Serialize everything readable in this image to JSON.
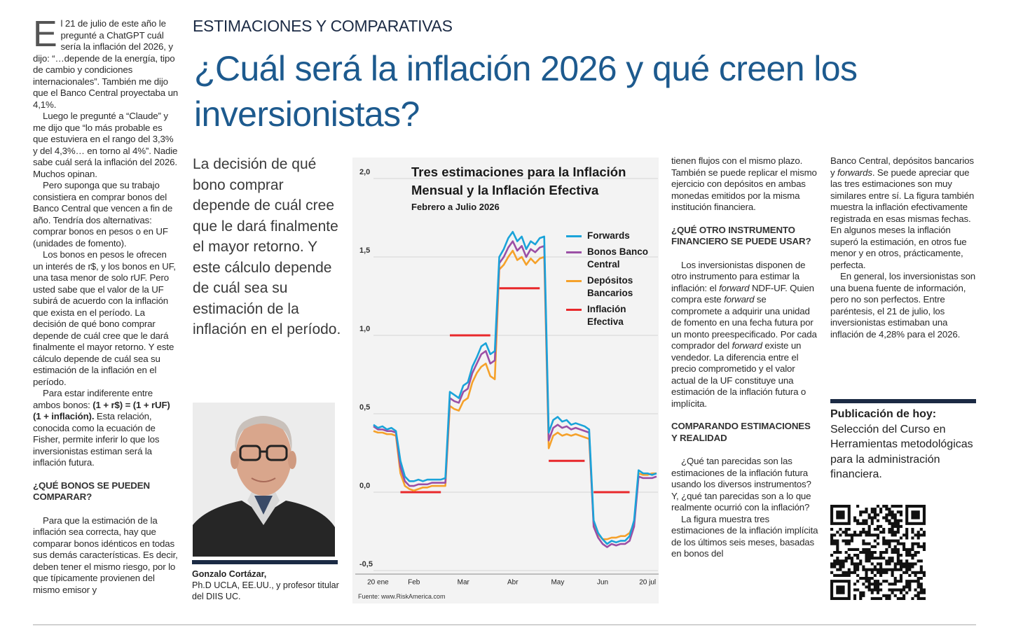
{
  "section": "ESTIMACIONES Y COMPARATIVAS",
  "headline": "¿Cuál será la inflación 2026 y qué creen los inversionistas?",
  "lead": "La decisión de qué bono comprar depende de cuál cree que le dará finalmente el mayor retorno. Y este cálculo depende de cuál sea su estimación de la inflación en el período.",
  "columns": [
    [
      {
        "type": "p",
        "drop_cap": "E",
        "text": "l 21 de julio de este año le pregunté a ChatGPT cuál sería la inflación del 2026, y dijo: “…depende de la energía, tipo de cambio y condiciones internacionales”. También me dijo que el Banco Central proyectaba un 4,1%."
      },
      {
        "type": "p",
        "text": "Luego le pregunté a “Claude” y me dijo que “lo más probable es que estuviera en el rango del 3,3% y del 4,3%… en torno al 4%”. Nadie sabe cuál será la inflación del 2026. Muchos opinan."
      },
      {
        "type": "p",
        "text": "Pero suponga que su trabajo consistiera en comprar bonos del Banco Central que vencen a fin de año. Tendría dos alternativas: comprar bonos en pesos o en UF (unidades de fomento)."
      },
      {
        "type": "p",
        "text": "Los bonos en pesos le ofrecen un interés de r$, y los bonos en UF, una tasa menor de solo rUF. Pero usted sabe que el valor de la UF subirá de acuerdo con la inflación que exista en el período. La decisión de qué bono comprar depende de cuál cree que le dará finalmente el mayor retorno. Y este cálculo depende de cuál sea su estimación de la inflación en el período."
      },
      {
        "type": "p",
        "runs": [
          {
            "text": "Para estar indiferente entre ambos bonos: "
          },
          {
            "text": "(1 + r$) = (1 + rUF) (1 + inflación).",
            "style": "bold"
          },
          {
            "text": " Esta relación, conocida como la ecuación de Fisher, permite inferir lo que los inversionistas estiman será la inflación futura."
          }
        ]
      },
      {
        "type": "h",
        "text": "¿QUÉ BONOS SE PUEDEN COMPARAR?"
      },
      {
        "type": "p",
        "text": "Para que la estimación de la inflación sea correcta, hay que comparar bonos idénticos en todas sus demás características. Es decir, deben tener el mismo riesgo, por lo que típicamente provienen del mismo emisor y"
      }
    ],
    [
      {
        "type": "p",
        "text": "tienen flujos con el mismo plazo. También se puede replicar el mismo ejercicio con depósitos en ambas monedas emitidos por la misma institución financiera."
      },
      {
        "type": "h",
        "text": "¿QUÉ OTRO INSTRUMENTO FINANCIERO SE PUEDE USAR?"
      },
      {
        "type": "p",
        "runs": [
          {
            "text": "Los inversionistas disponen de otro instrumento para estimar la inflación: el "
          },
          {
            "text": "forward",
            "style": "italic"
          },
          {
            "text": " NDF-UF. Quien compra este "
          },
          {
            "text": "forward",
            "style": "italic"
          },
          {
            "text": " se compromete a adquirir una unidad de fomento en una fecha futura por un monto preespecificado. Por cada comprador del "
          },
          {
            "text": "forward",
            "style": "italic"
          },
          {
            "text": " existe un vendedor. La diferencia entre el precio comprometido y el valor actual de la UF constituye una estimación de la inflación futura o implícita."
          }
        ]
      },
      {
        "type": "h",
        "text": "COMPARANDO ESTIMACIONES Y REALIDAD"
      },
      {
        "type": "p",
        "text": "¿Qué tan parecidas son las estimaciones de la inflación futura usando los diversos instrumentos? Y, ¿qué tan parecidas son a lo que realmente ocurrió con la inflación?"
      },
      {
        "type": "p",
        "text": "La figura muestra tres estimaciones de la inflación implícita de los últimos seis meses, basadas en bonos del"
      }
    ],
    [
      {
        "type": "p",
        "runs": [
          {
            "text": "Banco Central, depósitos bancarios y "
          },
          {
            "text": "forwards",
            "style": "italic"
          },
          {
            "text": ". Se puede apreciar que las tres estimaciones son muy similares entre sí. La figura también muestra la inflación efectivamente registrada en esas mismas fechas. En algunos meses la inflación superó la estimación, en otros fue menor y en otros, prácticamente, perfecta."
          }
        ]
      },
      {
        "type": "p",
        "text": "En general, los inversionistas son una buena fuente de información, pero no son perfectos. Entre paréntesis, el 21 de julio, los inversionistas estimaban una inflación de 4,28% para el 2026."
      }
    ]
  ],
  "author": {
    "name": "Gonzalo Cortázar,",
    "bio": "Ph.D UCLA, EE.UU., y profesor titular del DIIS UC."
  },
  "promo": {
    "title": "Publicación de hoy:",
    "text": "Selección del Curso en Herramientas metodológicas para la administración financiera."
  },
  "chart_data": {
    "type": "line",
    "title": "Tres estimaciones para la Inflación Mensual y la Inflación Efectiva",
    "subtitle": "Febrero a Julio 2026",
    "source": "Fuente: www.RiskAmerica.com",
    "categories": [
      null,
      "20 ene",
      null,
      null,
      null,
      null,
      null,
      null,
      null,
      "Feb",
      null,
      null,
      null,
      null,
      null,
      null,
      null,
      null,
      null,
      null,
      "Mar",
      null,
      null,
      null,
      null,
      null,
      null,
      null,
      null,
      null,
      null,
      "Abr",
      null,
      null,
      null,
      null,
      null,
      null,
      null,
      null,
      null,
      "May",
      null,
      null,
      null,
      null,
      null,
      null,
      null,
      null,
      null,
      "Jun",
      null,
      null,
      null,
      null,
      null,
      null,
      null,
      null,
      null,
      "20 jul",
      null,
      null
    ],
    "ylim": [
      -0.5,
      2.0
    ],
    "yticks": [
      {
        "value": 2.0,
        "label": "2,0"
      },
      {
        "value": 1.5,
        "label": "1,5"
      },
      {
        "value": 1.0,
        "label": "1,0"
      },
      {
        "value": 0.5,
        "label": "0,5"
      },
      {
        "value": 0.0,
        "label": "0,0"
      },
      {
        "value": -0.5,
        "label": "-0,5"
      }
    ],
    "grid": true,
    "series": [
      {
        "name": "Forwards",
        "color": "#1aa3d9",
        "values": [
          0.43,
          0.41,
          0.42,
          0.4,
          0.41,
          0.39,
          0.2,
          0.1,
          0.07,
          0.07,
          0.08,
          0.07,
          0.08,
          0.08,
          0.08,
          0.08,
          0.09,
          0.64,
          0.62,
          0.6,
          0.68,
          0.7,
          0.8,
          0.86,
          0.93,
          0.95,
          0.88,
          0.9,
          1.5,
          1.55,
          1.62,
          1.66,
          1.6,
          1.63,
          1.55,
          1.6,
          1.58,
          1.62,
          1.63,
          0.38,
          0.46,
          0.48,
          0.45,
          0.46,
          0.43,
          0.44,
          0.43,
          0.42,
          0.4,
          -0.18,
          -0.26,
          -0.3,
          -0.33,
          -0.31,
          -0.32,
          -0.31,
          -0.31,
          -0.28,
          -0.18,
          0.14,
          0.12,
          0.12,
          0.11,
          0.12
        ]
      },
      {
        "name": "Bonos Banco Central",
        "color": "#9b4fa5",
        "values": [
          0.42,
          0.4,
          0.4,
          0.39,
          0.39,
          0.38,
          0.16,
          0.07,
          0.04,
          0.04,
          0.05,
          0.05,
          0.05,
          0.06,
          0.06,
          0.06,
          0.06,
          0.6,
          0.58,
          0.57,
          0.64,
          0.66,
          0.76,
          0.82,
          0.88,
          0.9,
          0.82,
          0.84,
          1.46,
          1.5,
          1.56,
          1.6,
          1.54,
          1.57,
          1.5,
          1.55,
          1.53,
          1.56,
          1.57,
          0.33,
          0.41,
          0.43,
          0.41,
          0.42,
          0.4,
          0.41,
          0.4,
          0.39,
          0.38,
          -0.22,
          -0.29,
          -0.33,
          -0.35,
          -0.33,
          -0.34,
          -0.33,
          -0.33,
          -0.31,
          -0.22,
          0.1,
          0.09,
          0.09,
          0.09,
          0.1
        ]
      },
      {
        "name": "Depósitos Bancarios",
        "color": "#f5a12a",
        "values": [
          0.39,
          0.38,
          0.38,
          0.37,
          0.37,
          0.36,
          0.12,
          0.04,
          0.02,
          0.01,
          0.02,
          0.03,
          0.03,
          0.04,
          0.04,
          0.04,
          0.04,
          0.55,
          0.53,
          0.52,
          0.58,
          0.6,
          0.7,
          0.76,
          0.8,
          0.82,
          0.74,
          0.72,
          1.42,
          1.45,
          1.5,
          1.54,
          1.48,
          1.5,
          1.45,
          1.49,
          1.46,
          1.49,
          1.5,
          0.28,
          0.36,
          0.38,
          0.36,
          0.37,
          0.36,
          0.37,
          0.36,
          0.35,
          0.34,
          -0.2,
          -0.27,
          -0.3,
          -0.3,
          -0.29,
          -0.29,
          -0.28,
          -0.28,
          -0.26,
          -0.2,
          0.12,
          0.11,
          0.11,
          0.12,
          0.12
        ]
      },
      {
        "name": "Inflación Efectiva",
        "color": "#e8282b",
        "values": [
          null,
          null,
          null,
          null,
          null,
          null,
          0,
          0,
          0,
          0,
          0,
          0,
          0,
          0,
          0,
          0,
          null,
          1.0,
          1.0,
          1.0,
          1.0,
          1.0,
          1.0,
          1.0,
          1.0,
          1.0,
          1.0,
          null,
          1.3,
          1.3,
          1.3,
          1.3,
          1.3,
          1.3,
          1.3,
          1.3,
          1.3,
          1.3,
          null,
          0.2,
          0.2,
          0.2,
          0.2,
          0.2,
          0.2,
          0.2,
          0.2,
          0.2,
          null,
          0,
          0,
          0,
          0,
          0,
          0,
          0,
          0,
          0,
          null,
          null,
          null,
          null,
          null,
          null
        ]
      }
    ]
  }
}
